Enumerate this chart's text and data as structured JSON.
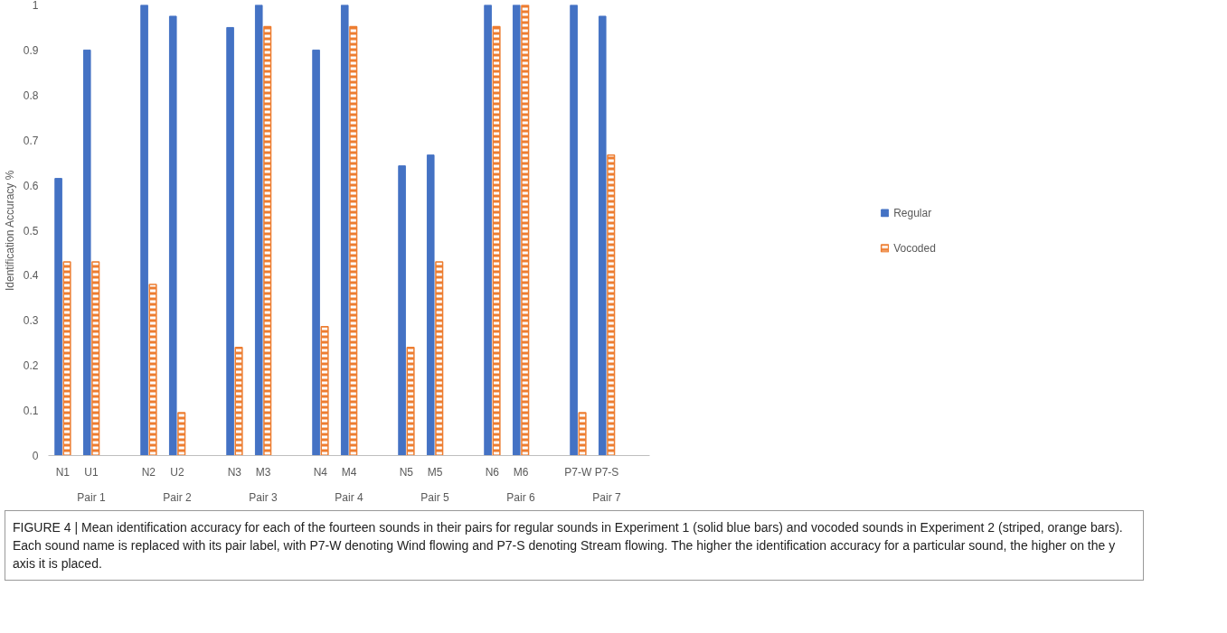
{
  "chart_data": {
    "type": "bar",
    "ylabel": "Identification Accuracy %",
    "categories": [
      "N1",
      "U1",
      null,
      "N2",
      "U2",
      null,
      "N3",
      "M3",
      null,
      "N4",
      "M4",
      null,
      "N5",
      "M5",
      null,
      "N6",
      "M6",
      null,
      "P7-W",
      "P7-S"
    ],
    "series": [
      {
        "name": "Regular",
        "color": "#4472c4",
        "values": [
          0.615,
          0.9,
          null,
          1,
          0.975,
          null,
          0.95,
          1,
          null,
          0.9,
          1,
          null,
          0.643,
          0.667,
          null,
          1,
          1,
          null,
          1,
          0.975
        ]
      },
      {
        "name": "Vocoded",
        "color": "#ed7d31",
        "values": [
          0.43,
          0.43,
          null,
          0.38,
          0.095,
          null,
          0.24,
          0.952,
          null,
          0.286,
          0.952,
          null,
          0.24,
          0.43,
          null,
          0.952,
          1,
          null,
          0.095,
          0.667
        ]
      }
    ],
    "ylim": [
      0,
      1
    ],
    "yticks": [
      0,
      0.1,
      0.2,
      0.3,
      0.4,
      0.5,
      0.6,
      0.7,
      0.8,
      0.9,
      1
    ],
    "grid": false,
    "legend": "right",
    "annotations": [
      "Pair 1",
      "Pair 2",
      "Pair 3",
      "Pair 4",
      "Pair 5",
      "Pair 6",
      "Pair 7",
      "FIGURE 4 | Mean identification accuracy for each of the fourteen sounds in their pairs for regular sounds in Experiment 1 (solid blue bars) and vocoded sounds in Experiment 2 (striped, orange bars). Each sound name is replaced with its pair label, with P7-W denoting Wind flowing and P7-S denoting Stream flowing. The higher the identification accuracy for a particular sound, the higher on the y axis it is placed."
    ]
  }
}
